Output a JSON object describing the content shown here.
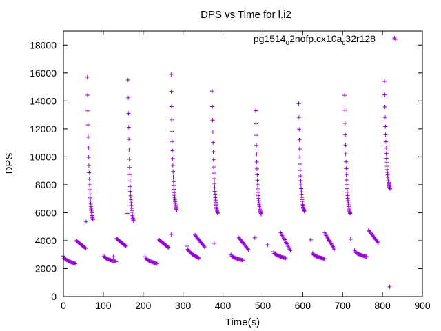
{
  "chart_data": {
    "type": "scatter",
    "title": "DPS vs Time for l.i2",
    "xlabel": "Time(s)",
    "ylabel": "DPS",
    "xlim": [
      0,
      900
    ],
    "ylim": [
      0,
      19000
    ],
    "xticks": [
      0,
      100,
      200,
      300,
      400,
      500,
      600,
      700,
      800,
      900
    ],
    "yticks": [
      0,
      2000,
      4000,
      6000,
      8000,
      10000,
      12000,
      14000,
      16000,
      18000
    ],
    "grid": false,
    "legend_position": "top-right",
    "series_color": "#9400d3",
    "series": [
      {
        "name_main": "pg1514",
        "name_sub1": "o",
        "name_mid": "2nofp.cx10a",
        "name_sub2": "c",
        "name_tail": "32r128",
        "name": "pg1514_o2nofp.cx10a_c32r128",
        "marker": "plus",
        "cycle": {
          "spike_times": [
            60,
            162,
            270,
            373,
            482,
            590,
            705,
            805
          ],
          "spike_peaks": [
            15700,
            15500,
            15900,
            14700,
            13300,
            13800,
            14400,
            15400
          ],
          "spike_floors": [
            5100,
            5000,
            5800,
            5600,
            5600,
            5800,
            5600,
            7400
          ],
          "spike_duration": 14,
          "spike_points": 26,
          "low_starts": [
            0,
            102,
            205,
            310,
            420,
            527,
            625,
            730
          ],
          "low_start_values": [
            2900,
            2900,
            2850,
            3600,
            3000,
            3200,
            3100,
            3300
          ],
          "low_end_values": [
            2350,
            2500,
            2350,
            2750,
            2600,
            2750,
            2700,
            2850
          ],
          "low_duration": 30,
          "low_points": 16,
          "mid_starts": [
            32,
            133,
            240,
            330,
            440,
            545,
            655,
            765
          ],
          "mid_start_values": [
            4000,
            4150,
            4050,
            4400,
            4200,
            4550,
            4550,
            4750
          ],
          "mid_end_values": [
            3450,
            3600,
            3500,
            3550,
            3350,
            3300,
            3400,
            3850
          ],
          "mid_duration": 24,
          "mid_points": 14
        },
        "outliers": [
          {
            "x": 830,
            "y": 18500
          },
          {
            "x": 818,
            "y": 700
          },
          {
            "x": 57,
            "y": 5350
          },
          {
            "x": 160,
            "y": 5950
          },
          {
            "x": 270,
            "y": 4450
          },
          {
            "x": 378,
            "y": 3800
          },
          {
            "x": 480,
            "y": 4200
          },
          {
            "x": 512,
            "y": 3700
          },
          {
            "x": 620,
            "y": 4050
          },
          {
            "x": 720,
            "y": 4100
          },
          {
            "x": 125,
            "y": 2850
          }
        ]
      }
    ]
  }
}
